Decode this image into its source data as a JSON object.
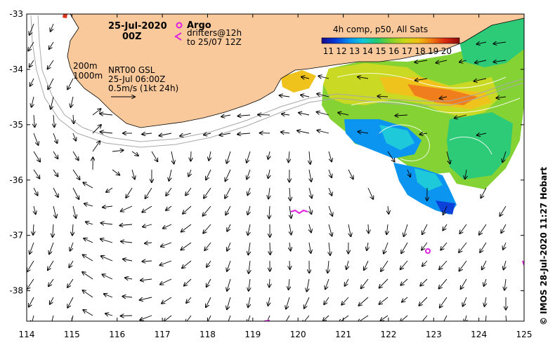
{
  "map": {
    "lon_ticks": [
      "114",
      "115",
      "116",
      "117",
      "118",
      "119",
      "120",
      "121",
      "122",
      "123",
      "124",
      "125"
    ],
    "lat_ticks": [
      "-33",
      "-34",
      "-35",
      "-36",
      "-37",
      "-38"
    ],
    "lon_range": [
      114,
      125
    ],
    "lat_range": [
      -38.55,
      -33.0
    ],
    "land_color": "#f9c89b",
    "ocean_color": "#ffffff",
    "isobath_color": "#a8a8a8",
    "argo_color": "#e020e0"
  },
  "header": {
    "date": "25-Jul-2020",
    "time": "00Z",
    "argo_label": "Argo",
    "drifters_label": "drifters@12h",
    "drifters_range": "to 25/07 12Z"
  },
  "legend": {
    "isobath_200": "200m",
    "isobath_1000": "1000m",
    "current_product": "NRT00 GSL",
    "current_time": "25-Jul 06:00Z",
    "scale_label": "0.5m/s (1kt 24h)"
  },
  "colorbar": {
    "title": "4h comp, p50, All Sats",
    "ticks": [
      "11",
      "12",
      "13",
      "14",
      "15",
      "16",
      "17",
      "18",
      "19",
      "20"
    ],
    "colors": [
      "#1a0a8c",
      "#0038d8",
      "#0090f0",
      "#12c8d8",
      "#22c870",
      "#7fd02a",
      "#c8d818",
      "#f0c010",
      "#f07810",
      "#d82810",
      "#8c0a0a"
    ]
  },
  "credit": "© IMOS 28-Jul-2020 11:27 Hobart"
}
